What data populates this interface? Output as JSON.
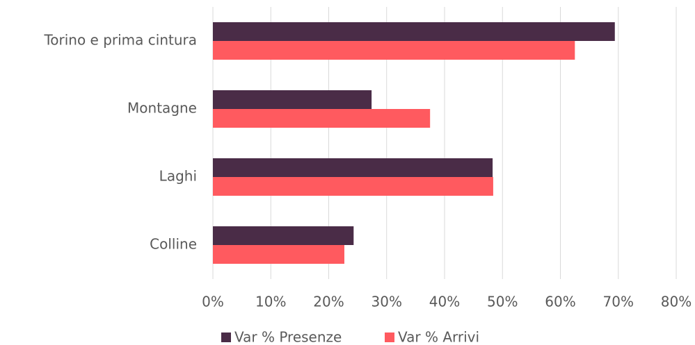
{
  "chart_data": {
    "type": "bar",
    "orientation": "horizontal",
    "categories": [
      "Torino e prima cintura",
      "Montagne",
      "Laghi",
      "Colline"
    ],
    "series": [
      {
        "name": "Var % Presenze",
        "color": "#4a2c47",
        "values": [
          69.4,
          27.4,
          48.3,
          24.3
        ]
      },
      {
        "name": "Var % Arrivi",
        "color": "#ff5a5f",
        "values": [
          62.5,
          37.5,
          48.4,
          22.7
        ]
      }
    ],
    "xlim": [
      0,
      80
    ],
    "xticks": [
      {
        "value": 0,
        "label": "0%"
      },
      {
        "value": 10,
        "label": "10%"
      },
      {
        "value": 20,
        "label": "20%"
      },
      {
        "value": 30,
        "label": "30%"
      },
      {
        "value": 40,
        "label": "40%"
      },
      {
        "value": 50,
        "label": "50%"
      },
      {
        "value": 60,
        "label": "60%"
      },
      {
        "value": 70,
        "label": "70%"
      },
      {
        "value": 80,
        "label": "80%"
      }
    ],
    "grid": true,
    "legend": "bottom"
  }
}
